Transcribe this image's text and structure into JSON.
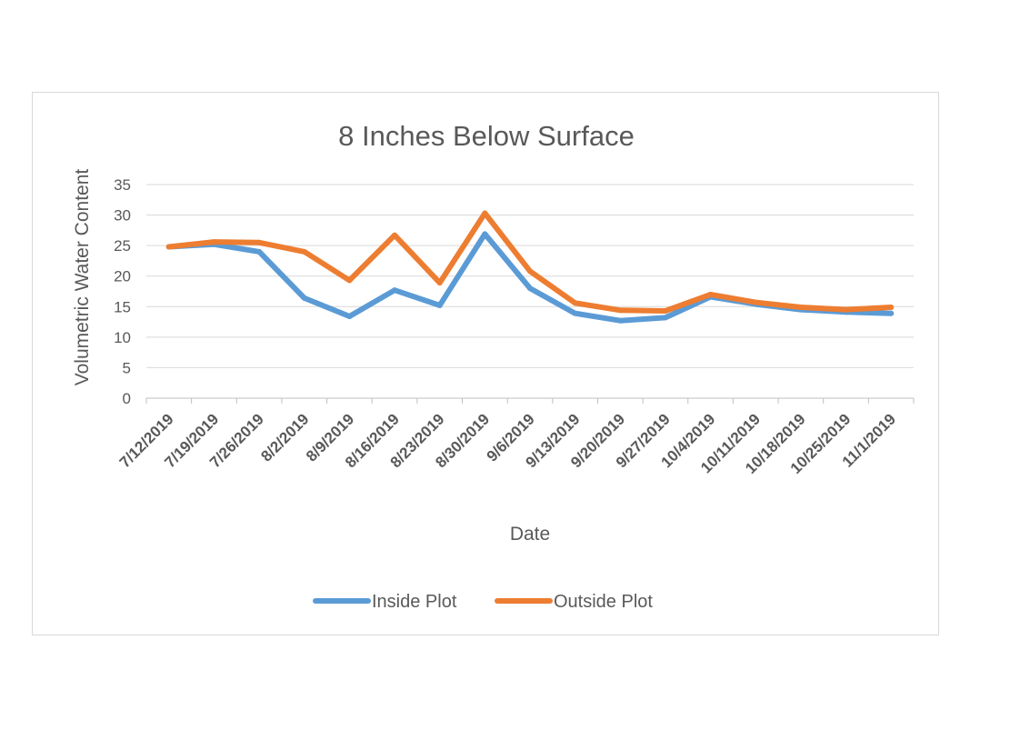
{
  "chart_data": {
    "type": "line",
    "title": "8 Inches Below Surface",
    "xlabel": "Date",
    "ylabel": "Volumetric Water Content",
    "ylim": [
      0,
      35
    ],
    "yticks": [
      0,
      5,
      10,
      15,
      20,
      25,
      30,
      35
    ],
    "grid": true,
    "legend_position": "bottom",
    "categories": [
      "7/12/2019",
      "7/19/2019",
      "7/26/2019",
      "8/2/2019",
      "8/9/2019",
      "8/16/2019",
      "8/23/2019",
      "8/30/2019",
      "9/6/2019",
      "9/13/2019",
      "9/20/2019",
      "9/27/2019",
      "10/4/2019",
      "10/11/2019",
      "10/18/2019",
      "10/25/2019",
      "11/1/2019"
    ],
    "series": [
      {
        "name": "Inside Plot",
        "color": "#5b9bd5",
        "values": [
          24.8,
          25.2,
          24.0,
          16.4,
          13.4,
          17.7,
          15.2,
          26.9,
          18.0,
          13.9,
          12.7,
          13.2,
          16.6,
          15.4,
          14.5,
          14.1,
          13.9
        ]
      },
      {
        "name": "Outside Plot",
        "color": "#ed7d31",
        "values": [
          24.8,
          25.6,
          25.5,
          24.0,
          19.3,
          26.7,
          18.9,
          30.3,
          20.8,
          15.6,
          14.4,
          14.3,
          17.0,
          15.7,
          14.9,
          14.5,
          14.9
        ]
      }
    ]
  }
}
